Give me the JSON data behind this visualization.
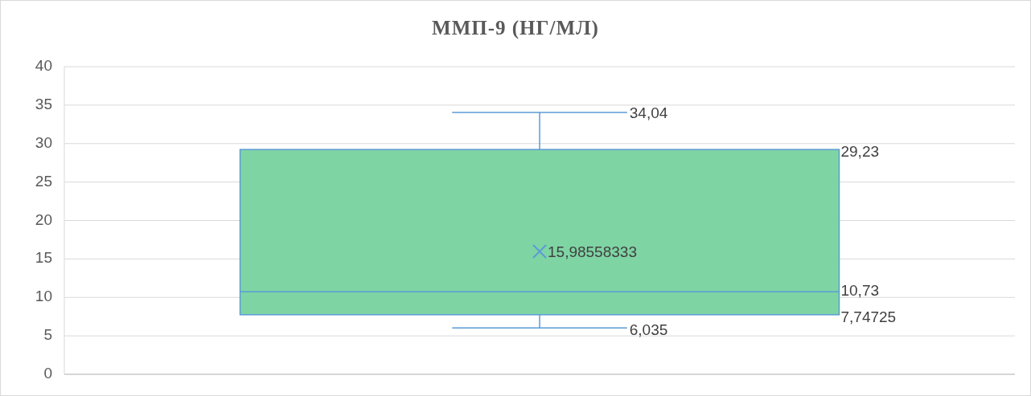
{
  "chart_data": {
    "type": "box",
    "title": "ММП-9 (НГ/МЛ)",
    "categories": [
      null
    ],
    "boxes": [
      {
        "low": 6.035,
        "q1": 7.74725,
        "median": 10.73,
        "q3": 29.23,
        "high": 34.04,
        "mean": 15.98558333
      }
    ],
    "value_labels": [
      {
        "low": "6,035",
        "q1": "7,74725",
        "median": "10,73",
        "q3": "29,23",
        "high": "34,04",
        "mean": "15,98558333"
      }
    ],
    "color": "#7fd4a4",
    "ylim": [
      0,
      40
    ],
    "yticks": [
      0,
      5,
      10,
      15,
      20,
      25,
      30,
      35,
      40
    ],
    "grid": "y"
  }
}
